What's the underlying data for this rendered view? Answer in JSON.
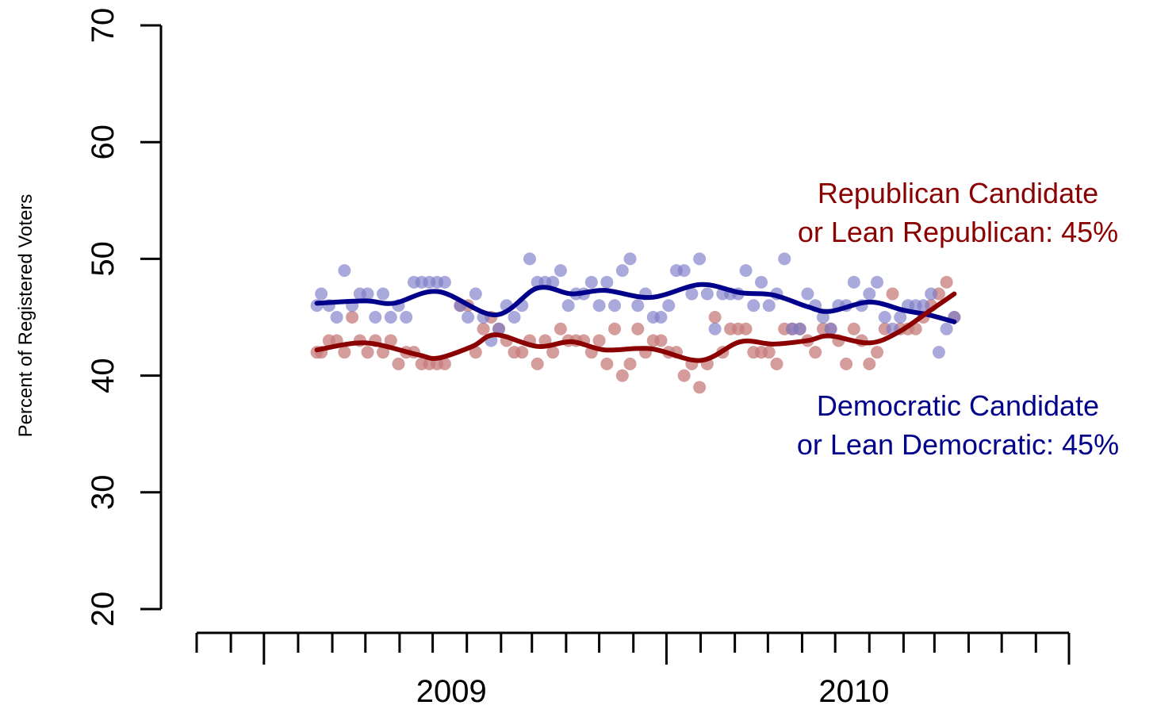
{
  "chart_data": {
    "type": "scatter",
    "title": "",
    "xlabel": "",
    "ylabel": "Percent of Registered Voters",
    "ylim": [
      20,
      70
    ],
    "yticks": [
      20,
      30,
      40,
      50,
      60,
      70
    ],
    "xlim": [
      "2008-05-15",
      "2010-07-15"
    ],
    "xtick_labels": [
      {
        "label": "2009",
        "date": "2009-01-01"
      },
      {
        "label": "2010",
        "date": "2010-01-01"
      }
    ],
    "grid": false,
    "colors": {
      "republican": "#8b0000",
      "republican_points": "#c77b7b",
      "democratic": "#00008b",
      "democratic_points": "#7b7bc7"
    },
    "annotations": {
      "republican": [
        "Republican Candidate",
        "or Lean Republican: 45%"
      ],
      "democratic": [
        "Democratic Candidate",
        "or Lean Democratic: 45%"
      ]
    },
    "series": [
      {
        "name": "Republican Candidate or Lean Republican",
        "color": "#8b0000",
        "points": [
          [
            "2008-09-01",
            42
          ],
          [
            "2008-09-05",
            42
          ],
          [
            "2008-09-12",
            43
          ],
          [
            "2008-09-19",
            43
          ],
          [
            "2008-09-26",
            42
          ],
          [
            "2008-10-03",
            45
          ],
          [
            "2008-10-10",
            43
          ],
          [
            "2008-10-17",
            42
          ],
          [
            "2008-10-24",
            43
          ],
          [
            "2008-10-31",
            42
          ],
          [
            "2008-11-07",
            43
          ],
          [
            "2008-11-14",
            41
          ],
          [
            "2008-11-21",
            42
          ],
          [
            "2008-11-28",
            42
          ],
          [
            "2008-12-05",
            41
          ],
          [
            "2008-12-12",
            41
          ],
          [
            "2008-12-19",
            41
          ],
          [
            "2008-12-26",
            41
          ],
          [
            "2009-01-09",
            46
          ],
          [
            "2009-01-16",
            46
          ],
          [
            "2009-01-23",
            42
          ],
          [
            "2009-01-30",
            44
          ],
          [
            "2009-02-06",
            45
          ],
          [
            "2009-02-13",
            44
          ],
          [
            "2009-02-20",
            43
          ],
          [
            "2009-02-27",
            42
          ],
          [
            "2009-03-06",
            42
          ],
          [
            "2009-03-13",
            43
          ],
          [
            "2009-03-20",
            41
          ],
          [
            "2009-03-27",
            43
          ],
          [
            "2009-04-03",
            42
          ],
          [
            "2009-04-10",
            44
          ],
          [
            "2009-04-17",
            43
          ],
          [
            "2009-04-24",
            43
          ],
          [
            "2009-05-01",
            43
          ],
          [
            "2009-05-08",
            42
          ],
          [
            "2009-05-15",
            43
          ],
          [
            "2009-05-22",
            41
          ],
          [
            "2009-05-29",
            44
          ],
          [
            "2009-06-05",
            40
          ],
          [
            "2009-06-12",
            41
          ],
          [
            "2009-06-19",
            44
          ],
          [
            "2009-06-26",
            42
          ],
          [
            "2009-07-03",
            43
          ],
          [
            "2009-07-10",
            43
          ],
          [
            "2009-07-17",
            42
          ],
          [
            "2009-07-24",
            42
          ],
          [
            "2009-07-31",
            40
          ],
          [
            "2009-08-07",
            41
          ],
          [
            "2009-08-14",
            39
          ],
          [
            "2009-08-21",
            41
          ],
          [
            "2009-08-28",
            45
          ],
          [
            "2009-09-04",
            42
          ],
          [
            "2009-09-11",
            44
          ],
          [
            "2009-09-18",
            44
          ],
          [
            "2009-09-25",
            44
          ],
          [
            "2009-10-02",
            42
          ],
          [
            "2009-10-09",
            42
          ],
          [
            "2009-10-16",
            42
          ],
          [
            "2009-10-23",
            41
          ],
          [
            "2009-10-30",
            44
          ],
          [
            "2009-11-06",
            44
          ],
          [
            "2009-11-13",
            44
          ],
          [
            "2009-11-20",
            43
          ],
          [
            "2009-11-27",
            42
          ],
          [
            "2009-12-04",
            44
          ],
          [
            "2009-12-11",
            44
          ],
          [
            "2009-12-18",
            43
          ],
          [
            "2009-12-25",
            41
          ],
          [
            "2010-01-01",
            44
          ],
          [
            "2010-01-08",
            43
          ],
          [
            "2010-01-15",
            41
          ],
          [
            "2010-01-22",
            42
          ],
          [
            "2010-01-29",
            44
          ],
          [
            "2010-02-05",
            47
          ],
          [
            "2010-02-12",
            44
          ],
          [
            "2010-02-19",
            44
          ],
          [
            "2010-02-26",
            44
          ],
          [
            "2010-03-05",
            45
          ],
          [
            "2010-03-12",
            46
          ],
          [
            "2010-03-19",
            47
          ],
          [
            "2010-03-26",
            48
          ],
          [
            "2010-04-02",
            45
          ]
        ],
        "trend": [
          [
            "2008-09-01",
            42.2
          ],
          [
            "2008-10-15",
            42.8
          ],
          [
            "2008-12-01",
            41.8
          ],
          [
            "2008-12-20",
            41.5
          ],
          [
            "2009-01-20",
            42.5
          ],
          [
            "2009-02-10",
            43.5
          ],
          [
            "2009-03-20",
            42.5
          ],
          [
            "2009-04-20",
            42.9
          ],
          [
            "2009-05-20",
            42.2
          ],
          [
            "2009-07-01",
            42.3
          ],
          [
            "2009-08-15",
            41.3
          ],
          [
            "2009-09-20",
            42.9
          ],
          [
            "2009-10-20",
            42.7
          ],
          [
            "2009-11-20",
            43.0
          ],
          [
            "2009-12-10",
            43.4
          ],
          [
            "2010-01-15",
            42.8
          ],
          [
            "2010-02-10",
            43.7
          ],
          [
            "2010-03-10",
            45.5
          ],
          [
            "2010-04-02",
            47.0
          ]
        ]
      },
      {
        "name": "Democratic Candidate or Lean Democratic",
        "color": "#00008b",
        "points": [
          [
            "2008-09-01",
            46
          ],
          [
            "2008-09-05",
            47
          ],
          [
            "2008-09-12",
            46
          ],
          [
            "2008-09-19",
            45
          ],
          [
            "2008-09-26",
            49
          ],
          [
            "2008-10-03",
            46
          ],
          [
            "2008-10-10",
            47
          ],
          [
            "2008-10-17",
            47
          ],
          [
            "2008-10-24",
            45
          ],
          [
            "2008-10-31",
            47
          ],
          [
            "2008-11-07",
            45
          ],
          [
            "2008-11-14",
            46
          ],
          [
            "2008-11-21",
            45
          ],
          [
            "2008-11-28",
            48
          ],
          [
            "2008-12-05",
            48
          ],
          [
            "2008-12-12",
            48
          ],
          [
            "2008-12-19",
            48
          ],
          [
            "2008-12-26",
            48
          ],
          [
            "2009-01-09",
            46
          ],
          [
            "2009-01-16",
            45
          ],
          [
            "2009-01-23",
            47
          ],
          [
            "2009-01-30",
            45
          ],
          [
            "2009-02-06",
            43
          ],
          [
            "2009-02-13",
            44
          ],
          [
            "2009-02-20",
            46
          ],
          [
            "2009-02-27",
            45
          ],
          [
            "2009-03-06",
            46
          ],
          [
            "2009-03-13",
            50
          ],
          [
            "2009-03-20",
            48
          ],
          [
            "2009-03-27",
            48
          ],
          [
            "2009-04-03",
            48
          ],
          [
            "2009-04-10",
            49
          ],
          [
            "2009-04-17",
            46
          ],
          [
            "2009-04-24",
            47
          ],
          [
            "2009-05-01",
            47
          ],
          [
            "2009-05-08",
            48
          ],
          [
            "2009-05-15",
            46
          ],
          [
            "2009-05-22",
            48
          ],
          [
            "2009-05-29",
            46
          ],
          [
            "2009-06-05",
            49
          ],
          [
            "2009-06-12",
            50
          ],
          [
            "2009-06-19",
            46
          ],
          [
            "2009-06-26",
            47
          ],
          [
            "2009-07-03",
            45
          ],
          [
            "2009-07-10",
            45
          ],
          [
            "2009-07-17",
            46
          ],
          [
            "2009-07-24",
            49
          ],
          [
            "2009-07-31",
            49
          ],
          [
            "2009-08-07",
            47
          ],
          [
            "2009-08-14",
            50
          ],
          [
            "2009-08-21",
            47
          ],
          [
            "2009-08-28",
            44
          ],
          [
            "2009-09-04",
            47
          ],
          [
            "2009-09-11",
            47
          ],
          [
            "2009-09-18",
            47
          ],
          [
            "2009-09-25",
            49
          ],
          [
            "2009-10-02",
            46
          ],
          [
            "2009-10-09",
            48
          ],
          [
            "2009-10-16",
            46
          ],
          [
            "2009-10-23",
            47
          ],
          [
            "2009-10-30",
            50
          ],
          [
            "2009-11-06",
            44
          ],
          [
            "2009-11-13",
            44
          ],
          [
            "2009-11-20",
            47
          ],
          [
            "2009-11-27",
            46
          ],
          [
            "2009-12-04",
            45
          ],
          [
            "2009-12-11",
            44
          ],
          [
            "2009-12-18",
            46
          ],
          [
            "2009-12-25",
            46
          ],
          [
            "2010-01-01",
            48
          ],
          [
            "2010-01-08",
            46
          ],
          [
            "2010-01-15",
            47
          ],
          [
            "2010-01-22",
            48
          ],
          [
            "2010-01-29",
            45
          ],
          [
            "2010-02-05",
            44
          ],
          [
            "2010-02-12",
            45
          ],
          [
            "2010-02-19",
            46
          ],
          [
            "2010-02-26",
            46
          ],
          [
            "2010-03-05",
            46
          ],
          [
            "2010-03-12",
            47
          ],
          [
            "2010-03-19",
            42
          ],
          [
            "2010-03-26",
            44
          ],
          [
            "2010-04-02",
            45
          ]
        ],
        "trend": [
          [
            "2008-09-01",
            46.2
          ],
          [
            "2008-10-15",
            46.4
          ],
          [
            "2008-11-10",
            46.2
          ],
          [
            "2008-12-20",
            47.2
          ],
          [
            "2009-02-10",
            45.2
          ],
          [
            "2009-03-20",
            47.5
          ],
          [
            "2009-04-20",
            47.0
          ],
          [
            "2009-05-20",
            47.3
          ],
          [
            "2009-07-01",
            46.7
          ],
          [
            "2009-08-15",
            47.8
          ],
          [
            "2009-09-20",
            47.1
          ],
          [
            "2009-10-20",
            46.9
          ],
          [
            "2009-11-20",
            45.9
          ],
          [
            "2009-12-10",
            45.5
          ],
          [
            "2010-01-15",
            46.3
          ],
          [
            "2010-02-15",
            45.6
          ],
          [
            "2010-03-10",
            45.2
          ],
          [
            "2010-04-02",
            44.6
          ]
        ]
      }
    ]
  }
}
